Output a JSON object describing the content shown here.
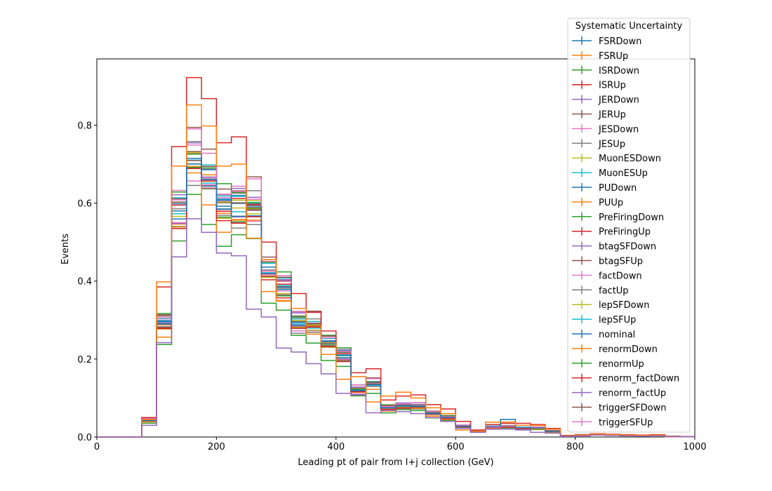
{
  "chart_data": {
    "type": "line",
    "drawstyle": "steps",
    "xlabel": "Leading pt of pair from l+j collection (GeV)",
    "ylabel": "Events",
    "xlim": [
      0,
      1000
    ],
    "ylim": [
      0,
      0.97
    ],
    "xticks": [
      0,
      200,
      400,
      600,
      800,
      1000
    ],
    "yticks": [
      0.0,
      0.2,
      0.4,
      0.6,
      0.8
    ],
    "grid": false,
    "legend": {
      "title": "Systematic Uncertainty",
      "placement": "top-right, outside plot area"
    },
    "bin_edges": [
      0,
      25,
      50,
      75,
      100,
      125,
      150,
      175,
      200,
      225,
      250,
      275,
      300,
      325,
      350,
      375,
      400,
      425,
      450,
      475,
      500,
      525,
      550,
      575,
      600,
      625,
      650,
      675,
      700,
      725,
      750,
      775,
      800,
      825,
      850,
      875,
      900,
      925,
      950,
      975,
      1000
    ],
    "base_shape": [
      0,
      0,
      0,
      0.042,
      0.29,
      0.58,
      0.71,
      0.66,
      0.59,
      0.59,
      0.59,
      0.42,
      0.385,
      0.295,
      0.285,
      0.24,
      0.21,
      0.12,
      0.135,
      0.075,
      0.08,
      0.078,
      0.06,
      0.05,
      0.028,
      0.015,
      0.025,
      0.027,
      0.022,
      0.023,
      0.015,
      0.002,
      0.004,
      0.006,
      0.005,
      0.004,
      0.003,
      0.004,
      0.001,
      0.001
    ],
    "series": [
      {
        "name": "FSRDown",
        "color": "#1f77b4",
        "scale": 1.0
      },
      {
        "name": "FSRUp",
        "color": "#ff7f0e",
        "scale": 0.98
      },
      {
        "name": "ISRDown",
        "color": "#2ca02c",
        "scale": 0.85
      },
      {
        "name": "ISRUp",
        "color": "#d62728",
        "scale": 1.3,
        "values": [
          0,
          0,
          0,
          0.05,
          0.385,
          0.745,
          0.922,
          0.868,
          0.755,
          0.77,
          0.565,
          0.5,
          0.392,
          0.368,
          0.32,
          0.272,
          0.21,
          0.165,
          0.175,
          0.095,
          0.105,
          0.108,
          0.083,
          0.072,
          0.04,
          0.018,
          0.032,
          0.035,
          0.035,
          0.032,
          0.022,
          0.004,
          0.006,
          0.008,
          0.007,
          0.006,
          0.005,
          0.006,
          0.002,
          0.001
        ]
      },
      {
        "name": "JERDown",
        "color": "#9467bd",
        "scale": 0.98
      },
      {
        "name": "JERUp",
        "color": "#8c564b",
        "scale": 1.02
      },
      {
        "name": "JESDown",
        "color": "#e377c2",
        "scale": 0.96
      },
      {
        "name": "JESUp",
        "color": "#7f7f7f",
        "scale": 1.03
      },
      {
        "name": "MuonESDown",
        "color": "#bcbd22",
        "scale": 1.0
      },
      {
        "name": "MuonESUp",
        "color": "#17becf",
        "scale": 1.02
      },
      {
        "name": "PUDown",
        "color": "#1f77b4",
        "scale": 1.01,
        "values": [
          0,
          0,
          0,
          0.042,
          0.29,
          0.58,
          0.715,
          0.66,
          0.585,
          0.62,
          0.59,
          0.42,
          0.385,
          0.295,
          0.285,
          0.24,
          0.21,
          0.12,
          0.135,
          0.075,
          0.08,
          0.078,
          0.06,
          0.05,
          0.028,
          0.015,
          0.028,
          0.045,
          0.025,
          0.023,
          0.015,
          0.002,
          0.004,
          0.006,
          0.005,
          0.004,
          0.003,
          0.004,
          0.001,
          0.001
        ]
      },
      {
        "name": "PUUp",
        "color": "#ff7f0e",
        "scale": 1.2,
        "values": [
          0,
          0,
          0,
          0.045,
          0.398,
          0.695,
          0.852,
          0.798,
          0.695,
          0.7,
          0.51,
          0.455,
          0.35,
          0.33,
          0.285,
          0.242,
          0.148,
          0.155,
          0.09,
          0.105,
          0.115,
          0.1,
          0.075,
          0.06,
          0.018,
          0.015,
          0.038,
          0.038,
          0.03,
          0.03,
          0.02,
          0.003,
          0.005,
          0.007,
          0.006,
          0.005,
          0.004,
          0.005,
          0.001,
          0.001
        ]
      },
      {
        "name": "PreFiringDown",
        "color": "#2ca02c",
        "scale": 0.97
      },
      {
        "name": "PreFiringUp",
        "color": "#d62728",
        "scale": 1.0
      },
      {
        "name": "btagSFDown",
        "color": "#9467bd",
        "scale": 0.9,
        "values": [
          0,
          0,
          0,
          0.03,
          0.242,
          0.462,
          0.56,
          0.525,
          0.472,
          0.465,
          0.328,
          0.308,
          0.228,
          0.218,
          0.188,
          0.162,
          0.112,
          0.108,
          0.062,
          0.068,
          0.065,
          0.06,
          0.05,
          0.04,
          0.022,
          0.012,
          0.02,
          0.02,
          0.018,
          0.012,
          0.01,
          0.002,
          0.003,
          0.005,
          0.004,
          0.003,
          0.002,
          0.003,
          0.001,
          0.001
        ]
      },
      {
        "name": "btagSFUp",
        "color": "#8c564b",
        "scale": 1.09
      },
      {
        "name": "factDown",
        "color": "#e377c2",
        "scale": 1.05
      },
      {
        "name": "factUp",
        "color": "#7f7f7f",
        "scale": 0.94
      },
      {
        "name": "lepSFDown",
        "color": "#bcbd22",
        "scale": 0.99
      },
      {
        "name": "lepSFUp",
        "color": "#17becf",
        "scale": 1.02
      },
      {
        "name": "nominal",
        "color": "#1f77b4",
        "scale": 1.0
      },
      {
        "name": "renormDown",
        "color": "#ff7f0e",
        "scale": 0.92
      },
      {
        "name": "renormUp",
        "color": "#2ca02c",
        "scale": 1.06
      },
      {
        "name": "renorm_factDown",
        "color": "#d62728",
        "scale": 0.96
      },
      {
        "name": "renorm_factUp",
        "color": "#9467bd",
        "scale": 1.04
      },
      {
        "name": "triggerSFDown",
        "color": "#8c564b",
        "scale": 1.04
      },
      {
        "name": "triggerSFUp",
        "color": "#e377c2",
        "scale": 1.08
      }
    ]
  }
}
